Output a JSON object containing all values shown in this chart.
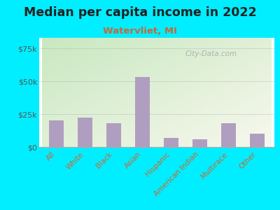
{
  "title": "Median per capita income in 2022",
  "subtitle": "Watervliet, MI",
  "categories": [
    "All",
    "White",
    "Black",
    "Asian",
    "Hispanic",
    "American Indian",
    "Multirace",
    "Other"
  ],
  "values": [
    20000,
    22500,
    18000,
    53000,
    7000,
    6000,
    18000,
    10000
  ],
  "bar_color": "#b09ec0",
  "yticks": [
    0,
    25000,
    50000,
    75000
  ],
  "ytick_labels": [
    "$0",
    "$25k",
    "$50k",
    "$75k"
  ],
  "ylim": [
    0,
    83000
  ],
  "bg_outer": "#00eeff",
  "bg_plot_top_left": "#c8e8c0",
  "bg_plot_bottom_right": "#f8f8ee",
  "title_color": "#222222",
  "subtitle_color": "#cc6633",
  "watermark": "City-Data.com",
  "title_fontsize": 12.5,
  "subtitle_fontsize": 9.5,
  "tick_label_color": "#cc6633",
  "axis_color": "#aaaaaa",
  "ytick_label_color": "#555555"
}
